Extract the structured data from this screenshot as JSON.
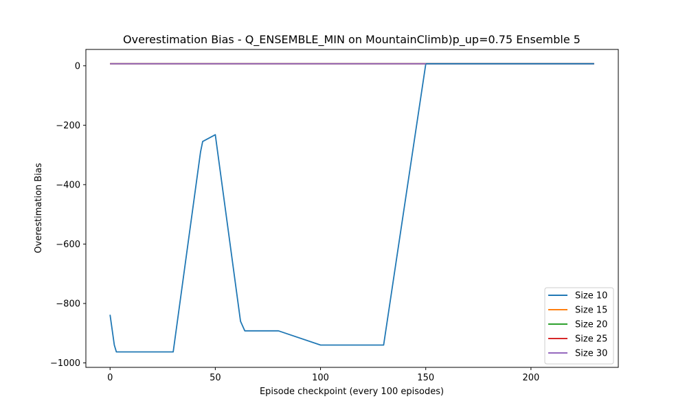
{
  "chart_data": {
    "type": "line",
    "title": "Overestimation Bias - Q_ENSEMBLE_MIN on MountainClimb)p_up=0.75 Ensemble 5",
    "xlabel": "Episode checkpoint (every 100 episodes)",
    "ylabel": "Overestimation Bias",
    "xlim": [
      -11.5,
      241.5
    ],
    "ylim": [
      -1015,
      55
    ],
    "xticks": [
      0,
      50,
      100,
      150,
      200
    ],
    "yticks": [
      0,
      -200,
      -400,
      -600,
      -800,
      -1000
    ],
    "ytick_labels": [
      "0",
      "−200",
      "−400",
      "−600",
      "−800",
      "−1000"
    ],
    "grid": false,
    "legend_position": "lower-right",
    "series": [
      {
        "name": "Size 10",
        "color": "#1f77b4",
        "x": [
          0,
          2,
          3,
          30,
          43,
          44,
          50,
          62,
          64,
          80,
          100,
          130,
          150
        ],
        "y": [
          -838,
          -940,
          -963,
          -963,
          -290,
          -255,
          -232,
          -860,
          -892,
          -892,
          -940,
          -940,
          5
        ]
      },
      {
        "name": "Size 15",
        "color": "#ff7f0e",
        "x": [
          0,
          230
        ],
        "y": [
          7,
          7
        ]
      },
      {
        "name": "Size 20",
        "color": "#2ca02c",
        "x": [
          0,
          230
        ],
        "y": [
          7,
          7
        ]
      },
      {
        "name": "Size 25",
        "color": "#d62728",
        "x": [
          0,
          230
        ],
        "y": [
          7,
          7
        ]
      },
      {
        "name": "Size 30",
        "color": "#9467bd",
        "x": [
          0,
          230
        ],
        "y": [
          7,
          7
        ]
      },
      {
        "name": "",
        "color": "#1f77b4",
        "x": [
          150,
          230
        ],
        "y": [
          7,
          7
        ]
      }
    ]
  }
}
